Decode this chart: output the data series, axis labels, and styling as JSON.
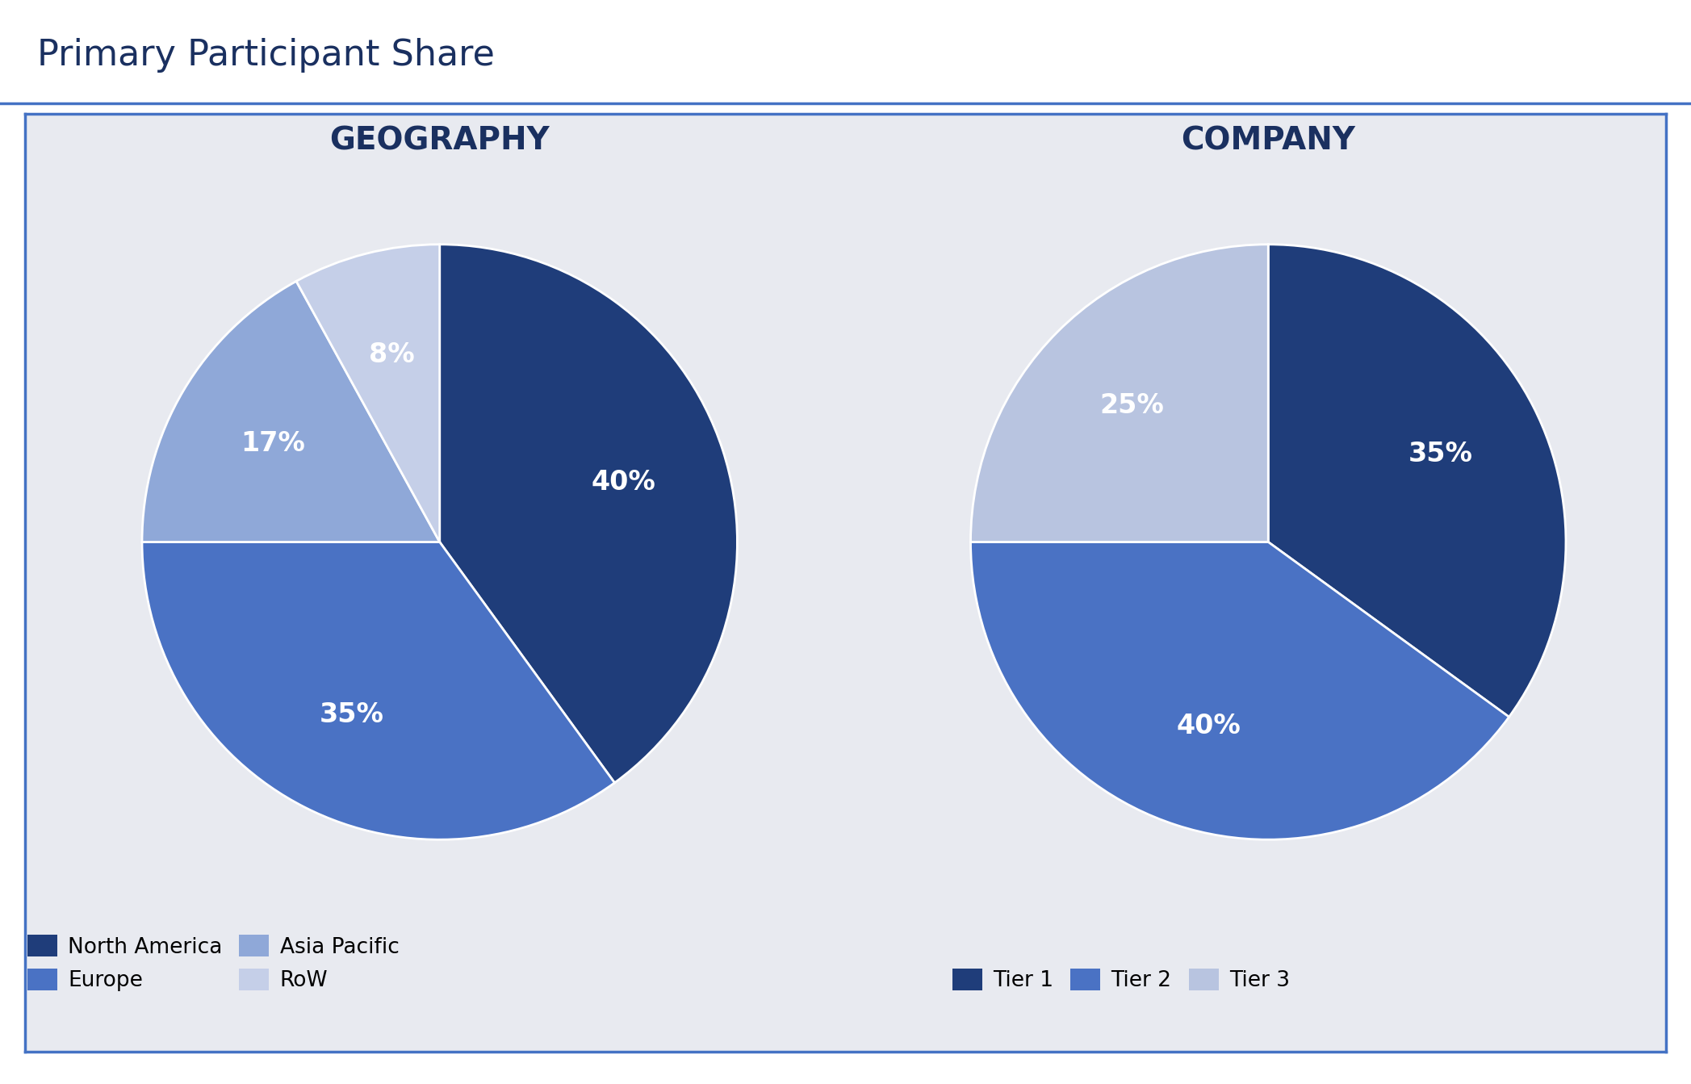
{
  "title": "Primary Participant Share",
  "title_color": "#1a3060",
  "title_fontsize": 32,
  "background_color": "#e8eaf0",
  "box_border_color": "#4472c4",
  "geo_title": "GEOGRAPHY",
  "geo_values": [
    40,
    35,
    17,
    8
  ],
  "geo_labels": [
    "North America",
    "Europe",
    "Asia Pacific",
    "RoW"
  ],
  "geo_pct_labels": [
    "40%",
    "35%",
    "17%",
    "8%"
  ],
  "geo_colors": [
    "#1f3d7a",
    "#4a72c4",
    "#8fa8d8",
    "#c5cfe8"
  ],
  "geo_startangle": 90,
  "comp_title": "COMPANY",
  "comp_values": [
    35,
    40,
    25
  ],
  "comp_labels": [
    "Tier 1",
    "Tier 2",
    "Tier 3"
  ],
  "comp_pct_labels": [
    "35%",
    "40%",
    "25%"
  ],
  "comp_colors": [
    "#1f3d7a",
    "#4a72c4",
    "#b8c4e0"
  ],
  "comp_startangle": 90,
  "legend_fontsize": 19,
  "pct_fontsize": 24,
  "subtitle_fontsize": 28
}
